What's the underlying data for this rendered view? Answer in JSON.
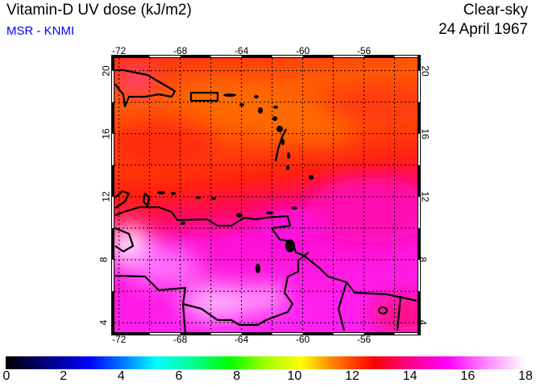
{
  "header": {
    "title": "Vitamin-D UV dose (kJ/m2)",
    "source": "MSR - KNMI",
    "condition": "Clear-sky",
    "date": "24 April 1967"
  },
  "map": {
    "lon_labels": [
      "-72",
      "-68",
      "-64",
      "-60",
      "-56"
    ],
    "lon_values": [
      -72,
      -68,
      -64,
      -60,
      -56
    ],
    "lat_labels": [
      "20",
      "16",
      "12",
      "8",
      "4"
    ],
    "lat_values": [
      20,
      16,
      12,
      8,
      4
    ],
    "lon_range": [
      -72.3,
      -52.5
    ],
    "lat_range": [
      3.4,
      20.8
    ]
  },
  "colorbar": {
    "labels": [
      "0",
      "2",
      "4",
      "6",
      "8",
      "10",
      "12",
      "14",
      "16",
      "18"
    ],
    "range": [
      0,
      18
    ],
    "colors": [
      "#000000",
      "#000080",
      "#0000ff",
      "#00a0ff",
      "#00ffff",
      "#00ff80",
      "#00ff00",
      "#c0ff00",
      "#ffff00",
      "#ff8000",
      "#ff0000",
      "#ff00a0",
      "#ff00ff",
      "#ff80ff",
      "#ffffff"
    ]
  }
}
